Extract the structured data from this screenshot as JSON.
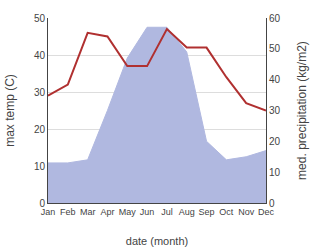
{
  "chart_data": {
    "type": "line",
    "xlabel": "date (month)",
    "ylabel": "max temp (C)",
    "y2label": "med. precipitation (kg/m2)",
    "categories": [
      "Jan",
      "Feb",
      "Mar",
      "Apr",
      "May",
      "Jun",
      "Jul",
      "Aug",
      "Sep",
      "Oct",
      "Nov",
      "Dec"
    ],
    "series": [
      {
        "type": "area",
        "color": "#b0b8e0",
        "axis": "y2",
        "values": [
          13,
          13,
          14,
          30,
          47,
          57,
          57,
          49,
          20,
          14,
          15,
          17
        ]
      },
      {
        "type": "line",
        "color": "#b03030",
        "values": [
          29,
          32,
          46,
          45,
          37,
          37,
          47,
          42,
          42,
          34,
          27,
          25
        ]
      }
    ],
    "ylim": [
      0,
      50
    ],
    "yticks": [
      0,
      10,
      20,
      30,
      40,
      50
    ],
    "y2lim": [
      0,
      60
    ],
    "y2ticks": [
      0,
      10,
      20,
      30,
      40,
      50,
      60
    ],
    "grid": true
  }
}
